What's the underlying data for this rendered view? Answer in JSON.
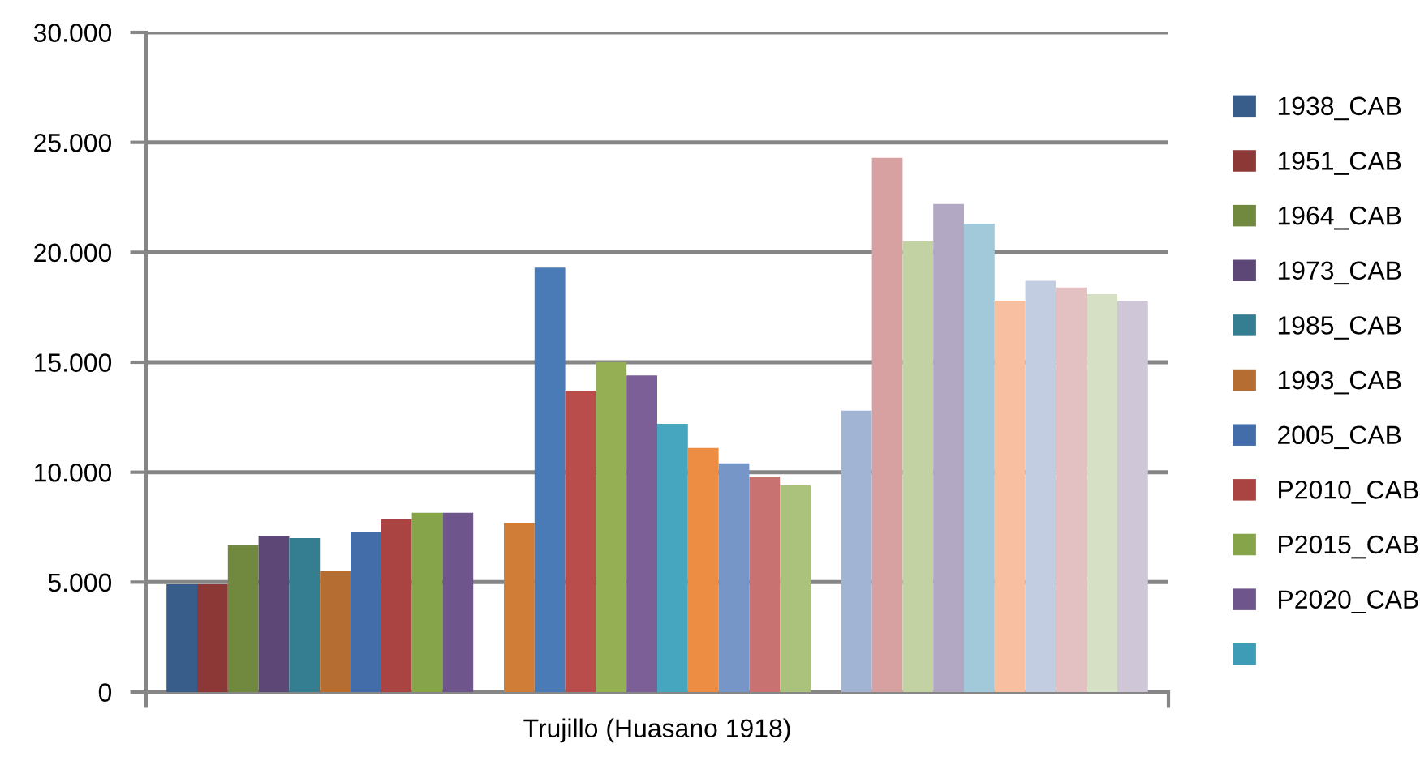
{
  "chart_data": {
    "type": "bar",
    "categories": [
      "Trujillo (Huasano 1918)"
    ],
    "ylim": [
      0,
      30000
    ],
    "yticks": [
      {
        "value": 0,
        "label": "0"
      },
      {
        "value": 5000,
        "label": "5.000"
      },
      {
        "value": 10000,
        "label": "10.000"
      },
      {
        "value": 15000,
        "label": "15.000"
      },
      {
        "value": 20000,
        "label": "20.000"
      },
      {
        "value": 25000,
        "label": "25.000"
      },
      {
        "value": 30000,
        "label": "30.000"
      }
    ],
    "grid": "y",
    "legend": "right",
    "series": [
      {
        "name": "1938_CAB",
        "color": "#385d8a",
        "values": [
          4900
        ]
      },
      {
        "name": "1951_CAB",
        "color": "#8c3836",
        "values": [
          4900
        ]
      },
      {
        "name": "1964_CAB",
        "color": "#71893f",
        "values": [
          6700
        ]
      },
      {
        "name": "1973_CAB",
        "color": "#5c4776",
        "values": [
          7100
        ]
      },
      {
        "name": "1985_CAB",
        "color": "#357d91",
        "values": [
          7000
        ]
      },
      {
        "name": "1993_CAB",
        "color": "#b66d31",
        "values": [
          5500
        ]
      },
      {
        "name": "2005_CAB",
        "color": "#426da9",
        "values": [
          7300
        ]
      },
      {
        "name": "P2010_CAB",
        "color": "#a94442",
        "values": [
          7850
        ]
      },
      {
        "name": "P2015_CAB",
        "color": "#86a44a",
        "values": [
          8150
        ]
      },
      {
        "name": "P2020_CAB",
        "color": "#6e568c",
        "values": [
          8150
        ]
      },
      {
        "color": "#3f9cb6",
        "values": [
          null
        ]
      },
      {
        "color": "#d07d38",
        "values": [
          7700
        ]
      },
      {
        "color": "#4a7bb7",
        "values": [
          19300
        ]
      },
      {
        "color": "#b84d4b",
        "values": [
          13700
        ]
      },
      {
        "color": "#95b054",
        "values": [
          15000
        ]
      },
      {
        "color": "#7d5f98",
        "values": [
          14400
        ]
      },
      {
        "color": "#46a5bf",
        "values": [
          12200
        ]
      },
      {
        "color": "#ec8d43",
        "values": [
          11100
        ]
      },
      {
        "color": "#7596c6",
        "values": [
          10400
        ]
      },
      {
        "color": "#c87371",
        "values": [
          9800
        ]
      },
      {
        "color": "#aac27b",
        "values": [
          9400
        ]
      },
      {
        "values": [
          null
        ]
      },
      {
        "color": "#a1b4d4",
        "values": [
          12800
        ]
      },
      {
        "color": "#d7a1a1",
        "values": [
          24300
        ]
      },
      {
        "color": "#c3d2a3",
        "values": [
          20500
        ]
      },
      {
        "color": "#b3a8c4",
        "values": [
          22200
        ]
      },
      {
        "color": "#a1c9d9",
        "values": [
          21300
        ]
      },
      {
        "color": "#f8bfa0",
        "values": [
          17800
        ]
      },
      {
        "color": "#c2cde1",
        "values": [
          18700
        ]
      },
      {
        "color": "#e3c1c2",
        "values": [
          18400
        ]
      },
      {
        "color": "#d6e0c5",
        "values": [
          18100
        ]
      },
      {
        "color": "#cfc6d8",
        "values": [
          17800
        ]
      }
    ]
  }
}
